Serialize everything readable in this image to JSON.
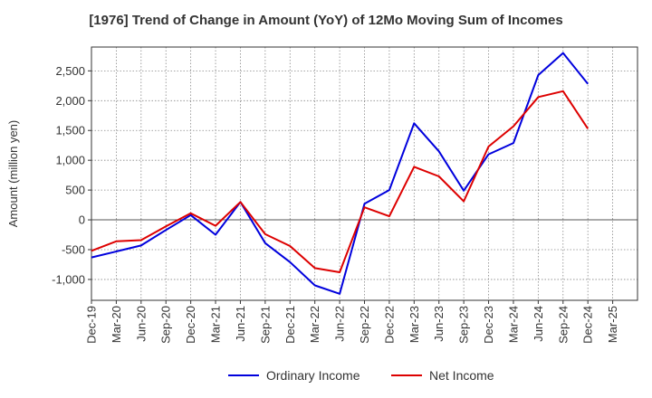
{
  "chart_data": {
    "type": "line",
    "title": "[1976]  Trend of Change in Amount (YoY) of 12Mo Moving Sum of Incomes",
    "ylabel": "Amount (million yen)",
    "xlabel": "",
    "ylim": [
      -1350,
      2900
    ],
    "yticks": [
      -1000,
      -500,
      0,
      500,
      1000,
      1500,
      2000,
      2500
    ],
    "ytick_labels": [
      "-1,000",
      "-500",
      "0",
      "500",
      "1,000",
      "1,500",
      "2,000",
      "2,500"
    ],
    "x_tick_labels": [
      "Dec-19",
      "Mar-20",
      "Jun-20",
      "Sep-20",
      "Dec-20",
      "Mar-21",
      "Jun-21",
      "Sep-21",
      "Dec-21",
      "Mar-22",
      "Jun-22",
      "Sep-22",
      "Dec-22",
      "Mar-23",
      "Jun-23",
      "Sep-23",
      "Dec-23",
      "Mar-24",
      "Jun-24",
      "Sep-24",
      "Dec-24",
      "Mar-25"
    ],
    "grid": true,
    "legend_position": "bottom",
    "series": [
      {
        "name": "Ordinary Income",
        "color": "#0000dd",
        "values": [
          -630,
          -530,
          -430,
          -170,
          80,
          -250,
          300,
          -390,
          -710,
          -1100,
          -1240,
          270,
          500,
          1620,
          1150,
          490,
          1100,
          1290,
          2430,
          2800,
          2280
        ]
      },
      {
        "name": "Net Income",
        "color": "#dd0000",
        "values": [
          -520,
          -360,
          -340,
          -110,
          110,
          -100,
          300,
          -240,
          -440,
          -810,
          -880,
          210,
          60,
          890,
          730,
          310,
          1230,
          1570,
          2060,
          2160,
          1530
        ]
      }
    ]
  }
}
